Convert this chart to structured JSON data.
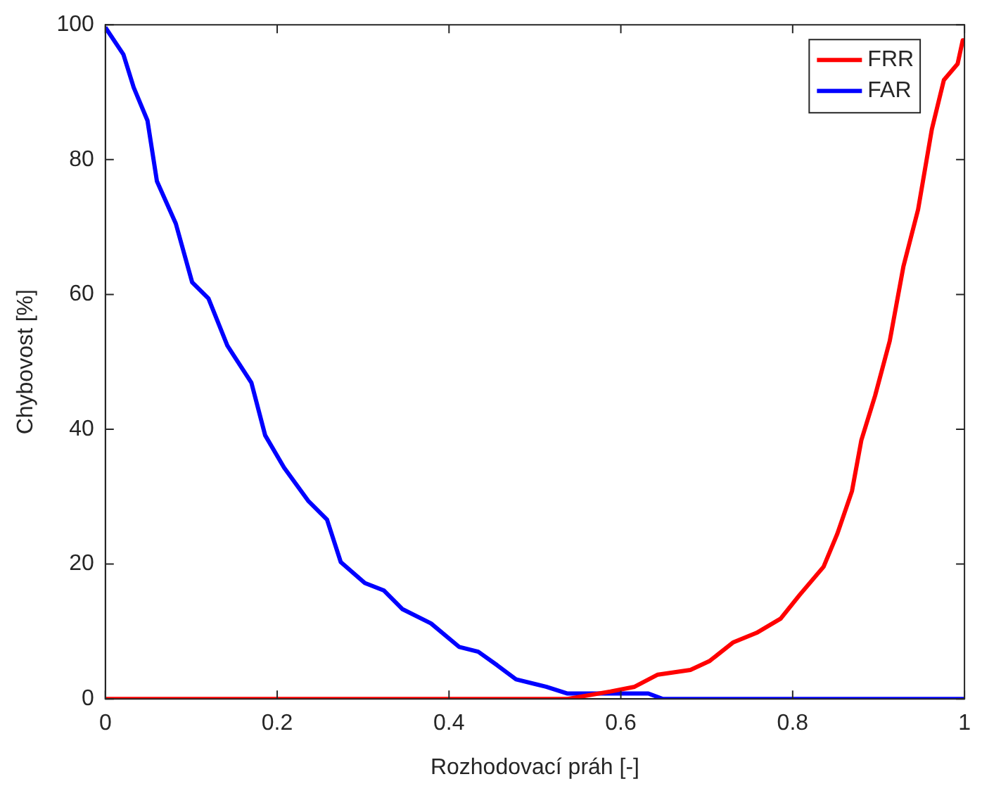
{
  "chart_data": {
    "type": "line",
    "xlabel": "Rozhodovací práh [-]",
    "ylabel": "Chybovost [%]",
    "xlim": [
      0,
      1
    ],
    "xticks": [
      0,
      0.2,
      0.4,
      0.6,
      0.8,
      1
    ],
    "ylim": [
      0,
      100
    ],
    "yticks": [
      0,
      20,
      40,
      60,
      80,
      100
    ],
    "grid": false,
    "legend": "top right",
    "marker": "none",
    "line_style": "solid",
    "series": [
      {
        "name": "FRR",
        "color": "#ff0000",
        "x": [
          0,
          0.538,
          0.588,
          0.616,
          0.643,
          0.681,
          0.703,
          0.731,
          0.758,
          0.786,
          0.808,
          0.836,
          0.852,
          0.869,
          0.88,
          0.896,
          0.913,
          0.929,
          0.946,
          0.962,
          0.976,
          0.992,
          0.998,
          1
        ],
        "values": [
          0,
          0,
          1.1,
          1.8,
          3.6,
          4.3,
          5.6,
          8.4,
          9.8,
          11.9,
          15.4,
          19.6,
          24.5,
          30.8,
          38.4,
          45,
          53.1,
          64.2,
          72.6,
          84.5,
          91.8,
          94.2,
          97.7,
          97.7
        ]
      },
      {
        "name": "FAR",
        "color": "#0000ff",
        "x": [
          0,
          0.021,
          0.033,
          0.049,
          0.06,
          0.082,
          0.101,
          0.12,
          0.142,
          0.17,
          0.186,
          0.208,
          0.236,
          0.258,
          0.274,
          0.302,
          0.324,
          0.346,
          0.379,
          0.412,
          0.434,
          0.456,
          0.478,
          0.513,
          0.538,
          0.632,
          0.649,
          1
        ],
        "values": [
          99.6,
          95.6,
          90.7,
          85.8,
          76.8,
          70.5,
          61.8,
          59.4,
          52.4,
          46.9,
          39.1,
          34.3,
          29.4,
          26.6,
          20.3,
          17.2,
          16.1,
          13.3,
          11.2,
          7.7,
          7,
          5,
          2.9,
          1.8,
          0.8,
          0.8,
          0,
          0
        ]
      }
    ]
  }
}
